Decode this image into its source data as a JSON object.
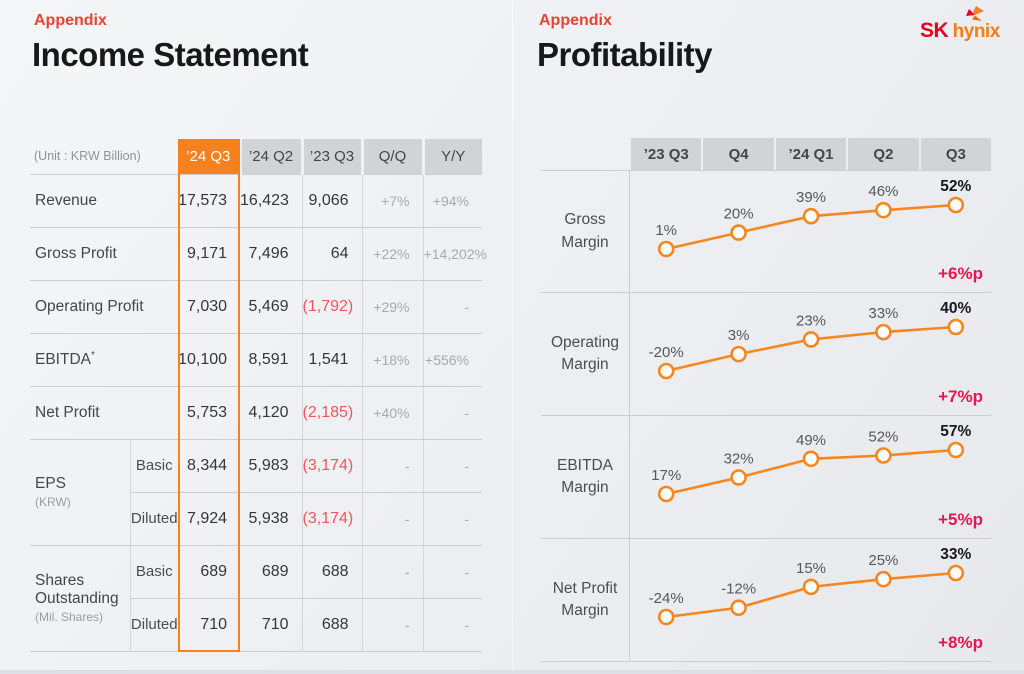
{
  "brand": {
    "sk": "SK",
    "hynix": "hynix",
    "red": "#E50026",
    "orange": "#F5821F"
  },
  "left_panel": {
    "eyebrow": "Appendix",
    "title": "Income Statement",
    "table": {
      "unit_label": "(Unit : KRW Billion)",
      "columns": [
        "’24 Q3",
        "’24 Q2",
        "’23 Q3",
        "Q/Q",
        "Y/Y"
      ],
      "highlighted_column": "’24 Q3",
      "rows": [
        {
          "label": "Revenue",
          "values": [
            "17,573",
            "16,423",
            "9,066",
            "+7%",
            "+94%"
          ]
        },
        {
          "label": "Gross Profit",
          "values": [
            "9,171",
            "7,496",
            "64",
            "+22%",
            "+14,202%"
          ]
        },
        {
          "label": "Operating Profit",
          "values": [
            "7,030",
            "5,469",
            "(1,792)",
            "+29%",
            "-"
          ]
        },
        {
          "label": "EBITDA",
          "label_sup": "*",
          "values": [
            "10,100",
            "8,591",
            "1,541",
            "+18%",
            "+556%"
          ]
        },
        {
          "label": "Net Profit",
          "values": [
            "5,753",
            "4,120",
            "(2,185)",
            "+40%",
            "-"
          ]
        },
        {
          "label": "EPS",
          "label_note": "(KRW)",
          "sub": "Basic",
          "values": [
            "8,344",
            "5,983",
            "(3,174)",
            "-",
            "-"
          ]
        },
        {
          "sub": "Diluted",
          "values": [
            "7,924",
            "5,938",
            "(3,174)",
            "-",
            "-"
          ]
        },
        {
          "label": "Shares Outstanding",
          "label_note": "(Mil. Shares)",
          "sub": "Basic",
          "values": [
            "689",
            "689",
            "688",
            "-",
            "-"
          ]
        },
        {
          "sub": "Diluted",
          "values": [
            "710",
            "710",
            "688",
            "-",
            "-"
          ]
        }
      ]
    }
  },
  "right_panel": {
    "eyebrow": "Appendix",
    "title": "Profitability",
    "categories": [
      "’23 Q3",
      "Q4",
      "’24 Q1",
      "Q2",
      "Q3"
    ],
    "charts": [
      {
        "label": "Gross Margin",
        "values": [
          1,
          20,
          39,
          46,
          52
        ],
        "delta": "+6%p"
      },
      {
        "label": "Operating Margin",
        "values": [
          -20,
          3,
          23,
          33,
          40
        ],
        "delta": "+7%p"
      },
      {
        "label": "EBITDA Margin",
        "values": [
          17,
          32,
          49,
          52,
          57
        ],
        "delta": "+5%p"
      },
      {
        "label": "Net Profit Margin",
        "values": [
          -24,
          -12,
          15,
          25,
          33
        ],
        "delta": "+8%p"
      }
    ]
  },
  "chart_data": [
    {
      "type": "table",
      "title": "Income Statement",
      "unit": "KRW Billion",
      "columns": [
        "’24 Q3",
        "’24 Q2",
        "’23 Q3",
        "Q/Q",
        "Y/Y"
      ],
      "rows": [
        [
          "Revenue",
          "17,573",
          "16,423",
          "9,066",
          "+7%",
          "+94%"
        ],
        [
          "Gross Profit",
          "9,171",
          "7,496",
          "64",
          "+22%",
          "+14,202%"
        ],
        [
          "Operating Profit",
          "7,030",
          "5,469",
          "(1,792)",
          "+29%",
          "-"
        ],
        [
          "EBITDA*",
          "10,100",
          "8,591",
          "1,541",
          "+18%",
          "+556%"
        ],
        [
          "Net Profit",
          "5,753",
          "4,120",
          "(2,185)",
          "+40%",
          "-"
        ],
        [
          "EPS (KRW) Basic",
          "8,344",
          "5,983",
          "(3,174)",
          "-",
          "-"
        ],
        [
          "EPS (KRW) Diluted",
          "7,924",
          "5,938",
          "(3,174)",
          "-",
          "-"
        ],
        [
          "Shares Outstanding (Mil. Shares) Basic",
          "689",
          "689",
          "688",
          "-",
          "-"
        ],
        [
          "Shares Outstanding (Mil. Shares) Diluted",
          "710",
          "710",
          "688",
          "-",
          "-"
        ]
      ]
    },
    {
      "type": "line",
      "title": "Profitability",
      "x": [
        "’23 Q3",
        "Q4",
        "’24 Q1",
        "Q2",
        "Q3"
      ],
      "ylabel": "%",
      "legend_position": "left",
      "grid": false,
      "series": [
        {
          "name": "Gross Margin",
          "values": [
            1,
            20,
            39,
            46,
            52
          ],
          "qoq_delta": "+6%p"
        },
        {
          "name": "Operating Margin",
          "values": [
            -20,
            3,
            23,
            33,
            40
          ],
          "qoq_delta": "+7%p"
        },
        {
          "name": "EBITDA Margin",
          "values": [
            17,
            32,
            49,
            52,
            57
          ],
          "qoq_delta": "+5%p"
        },
        {
          "name": "Net Profit Margin",
          "values": [
            -24,
            -12,
            15,
            25,
            33
          ],
          "qoq_delta": "+8%p"
        }
      ]
    }
  ],
  "colors": {
    "accent_orange": "#F5821F",
    "header_gray": "#D2D3D5",
    "negative_red": "#F4555B",
    "delta_crimson": "#EA164F",
    "eyebrow_red": "#E8432F"
  }
}
